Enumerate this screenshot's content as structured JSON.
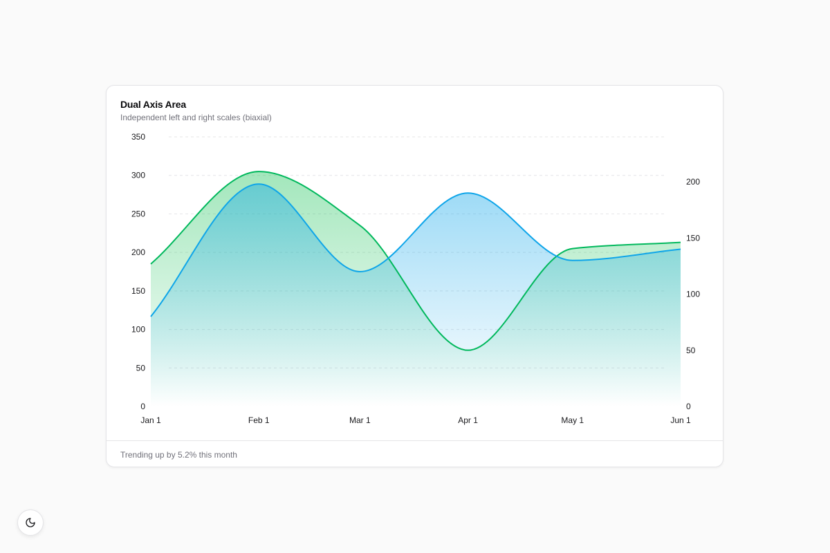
{
  "card": {
    "title": "Dual Axis Area",
    "subtitle": "Independent left and right scales (biaxial)",
    "footer": "Trending up by 5.2% this month"
  },
  "theme_toggle": {
    "icon": "moon-icon"
  },
  "chart_data": {
    "type": "area",
    "title": "Dual Axis Area",
    "subtitle": "Independent left and right scales (biaxial)",
    "xlabel": "",
    "ylabel": "",
    "x": [
      "2024-01-01",
      "2024-02-01",
      "2024-03-01",
      "2024-04-01",
      "2024-05-01",
      "2024-06-01"
    ],
    "x_tick_labels": [
      "Jan 1",
      "Feb 1",
      "Mar 1",
      "Apr 1",
      "May 1",
      "Jun 1"
    ],
    "y_left": {
      "range": [
        0,
        350
      ],
      "ticks": [
        0,
        50,
        100,
        150,
        200,
        250,
        300,
        350
      ]
    },
    "y_right": {
      "range": [
        0,
        240
      ],
      "ticks": [
        0,
        50,
        100,
        150,
        200
      ]
    },
    "grid": true,
    "legend": "none",
    "curve": "monotone",
    "series": [
      {
        "axis": "left",
        "color": "#00b85c",
        "values": [
          185,
          305,
          235,
          73,
          205,
          213
        ]
      },
      {
        "axis": "right",
        "color": "#0ea5e9",
        "values": [
          80,
          198,
          120,
          190,
          130,
          140
        ]
      }
    ]
  }
}
